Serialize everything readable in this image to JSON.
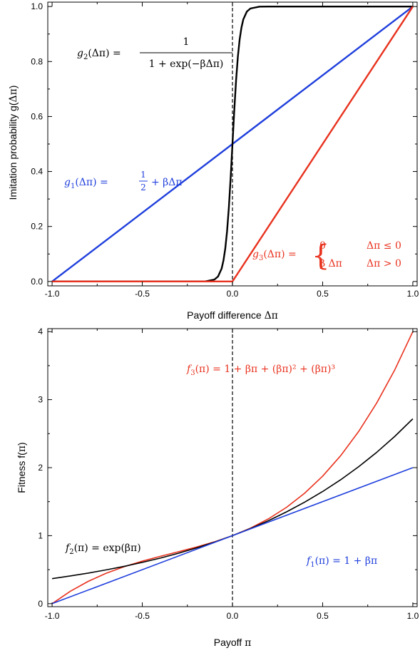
{
  "chart_data": [
    {
      "type": "line",
      "xlabel": "Payoff difference Δπ",
      "ylabel": "Imitation probability g(Δπ)",
      "xlim": [
        -1.0,
        1.0
      ],
      "ylim": [
        0.0,
        1.0
      ],
      "xticks": [
        -1.0,
        -0.5,
        0.0,
        0.5,
        1.0
      ],
      "xtick_labels": [
        "-1.0",
        "-0.5",
        "0.0",
        "0.5",
        "1.0"
      ],
      "yticks": [
        0.0,
        0.2,
        0.4,
        0.6,
        0.8,
        1.0
      ],
      "ytick_labels": [
        "0.0",
        "0.2",
        "0.4",
        "0.6",
        "0.8",
        "1.0"
      ],
      "grid": false,
      "vline_x": 0.0,
      "series": [
        {
          "color": "#1f3fdc",
          "x": [
            -1.0,
            1.0
          ],
          "y": [
            0.0,
            1.0
          ]
        },
        {
          "color": "#000000",
          "x": [
            -1.0,
            -0.5,
            -0.2,
            -0.15,
            -0.1,
            -0.08,
            -0.06,
            -0.05,
            -0.04,
            -0.03,
            -0.02,
            -0.01,
            0.0,
            0.01,
            0.02,
            0.03,
            0.04,
            0.05,
            0.06,
            0.08,
            0.1,
            0.15,
            0.2,
            0.5,
            1.0
          ],
          "y": [
            0.0,
            0.0,
            0.0,
            0.0005,
            0.007,
            0.018,
            0.047,
            0.076,
            0.119,
            0.182,
            0.269,
            0.378,
            0.5,
            0.622,
            0.731,
            0.818,
            0.881,
            0.924,
            0.953,
            0.982,
            0.993,
            0.9995,
            1.0,
            1.0,
            1.0
          ]
        },
        {
          "color": "#e8321e",
          "x": [
            -1.0,
            0.0,
            0.0,
            1.0
          ],
          "y": [
            0.0,
            0.0,
            0.0,
            1.0
          ]
        }
      ],
      "annotations": [
        {
          "text": "g₂(Δπ) = 1 / (1 + exp(−βΔπ))",
          "color": "#000000"
        },
        {
          "text": "g₁(Δπ) = 1/2 + βΔπ",
          "color": "#1f3fdc"
        },
        {
          "text": "g₃(Δπ) = { 0   Δπ ≤ 0 ; β Δπ   Δπ > 0 }",
          "color": "#e8321e"
        }
      ]
    },
    {
      "type": "line",
      "xlabel": "Payoff π",
      "ylabel": "Fitness f(π)",
      "xlim": [
        -1.0,
        1.0
      ],
      "ylim": [
        0,
        4
      ],
      "xticks": [
        -1.0,
        -0.5,
        0.0,
        0.5,
        1.0
      ],
      "xtick_labels": [
        "-1.0",
        "-0.5",
        "0.0",
        "0.5",
        "1.0"
      ],
      "yticks": [
        0,
        1,
        2,
        3,
        4
      ],
      "ytick_labels": [
        "0",
        "1",
        "2",
        "3",
        "4"
      ],
      "grid": false,
      "vline_x": 0.0,
      "series": [
        {
          "color": "#e8321e",
          "x": [
            -1.0,
            -0.9,
            -0.8,
            -0.7,
            -0.6,
            -0.5,
            -0.4,
            -0.3,
            -0.2,
            -0.1,
            0.0,
            0.1,
            0.2,
            0.3,
            0.4,
            0.5,
            0.6,
            0.7,
            0.8,
            0.9,
            1.0
          ],
          "y": [
            0.0,
            0.181,
            0.328,
            0.447,
            0.544,
            0.625,
            0.696,
            0.763,
            0.832,
            0.909,
            1.0,
            1.111,
            1.248,
            1.417,
            1.624,
            1.875,
            2.176,
            2.533,
            2.952,
            3.439,
            4.0
          ]
        },
        {
          "color": "#000000",
          "x": [
            -1.0,
            -0.9,
            -0.8,
            -0.7,
            -0.6,
            -0.5,
            -0.4,
            -0.3,
            -0.2,
            -0.1,
            0.0,
            0.1,
            0.2,
            0.3,
            0.4,
            0.5,
            0.6,
            0.7,
            0.8,
            0.9,
            1.0
          ],
          "y": [
            0.368,
            0.407,
            0.449,
            0.497,
            0.549,
            0.607,
            0.67,
            0.741,
            0.819,
            0.905,
            1.0,
            1.105,
            1.221,
            1.35,
            1.492,
            1.649,
            1.822,
            2.014,
            2.226,
            2.46,
            2.718
          ]
        },
        {
          "color": "#1f3fdc",
          "x": [
            -1.0,
            1.0
          ],
          "y": [
            0.0,
            2.0
          ]
        }
      ],
      "annotations": [
        {
          "text": "f₃(π) = 1 + βπ + (βπ)² + (βπ)³",
          "color": "#e8321e"
        },
        {
          "text": "f₁(π) = 1 + βπ",
          "color": "#1f3fdc"
        },
        {
          "text": "f₂(π) = exp(βπ)",
          "color": "#000000"
        }
      ]
    }
  ]
}
